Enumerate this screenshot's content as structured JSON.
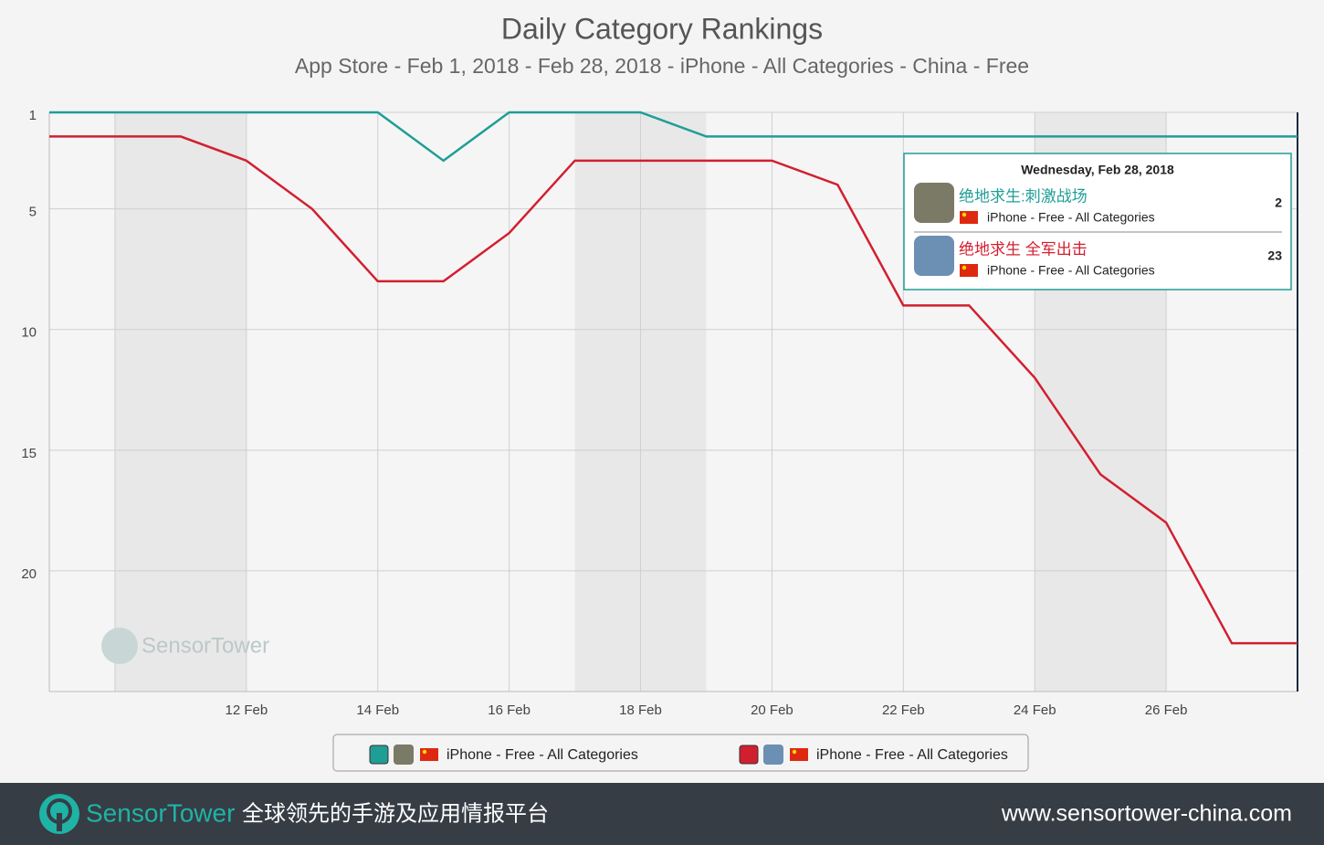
{
  "chart_data": {
    "type": "line",
    "title": "Daily Category Rankings",
    "subtitle": "App Store - Feb 1, 2018 - Feb 28, 2018 - iPhone - All Categories - China - Free",
    "x": [
      9,
      10,
      11,
      12,
      13,
      14,
      15,
      16,
      17,
      18,
      19,
      20,
      21,
      22,
      23,
      24,
      25,
      26,
      27,
      28
    ],
    "series": [
      {
        "name": "iPhone - Free - All Categories",
        "app": "绝地求生:刺激战场",
        "color": "#1f9e96",
        "values": [
          1,
          1,
          1,
          1,
          1,
          1,
          3,
          1,
          1,
          1,
          2,
          2,
          2,
          2,
          2,
          2,
          2,
          2,
          2,
          2
        ]
      },
      {
        "name": "iPhone - Free - All Categories",
        "app": "绝地求生 全军出击",
        "color": "#d21f30",
        "values": [
          2,
          2,
          2,
          3,
          5,
          8,
          8,
          6,
          3,
          3,
          3,
          3,
          4,
          9,
          9,
          12,
          16,
          18,
          23,
          23
        ]
      }
    ],
    "xlim": [
      9,
      28
    ],
    "xticks": [
      {
        "value": 12,
        "label": "12 Feb"
      },
      {
        "value": 14,
        "label": "14 Feb"
      },
      {
        "value": 16,
        "label": "16 Feb"
      },
      {
        "value": 18,
        "label": "18 Feb"
      },
      {
        "value": 20,
        "label": "20 Feb"
      },
      {
        "value": 22,
        "label": "22 Feb"
      },
      {
        "value": 24,
        "label": "24 Feb"
      },
      {
        "value": 26,
        "label": "26 Feb"
      }
    ],
    "xgrid": [
      10,
      12,
      14,
      16,
      18,
      20,
      22,
      24,
      26,
      28
    ],
    "shaded": [
      [
        10,
        12
      ],
      [
        17,
        19
      ],
      [
        24,
        26
      ]
    ],
    "ylim": [
      1,
      25
    ],
    "yticks": [
      1,
      5,
      10,
      15,
      20
    ],
    "y_inverted": true,
    "grid": true,
    "tooltip": {
      "title": "Wednesday, Feb 28, 2018"
    },
    "watermark": "SensorTower"
  },
  "footer": {
    "brand": "SensorTower",
    "tagline": "全球领先的手游及应用情报平台",
    "url": "www.sensortower-china.com"
  }
}
